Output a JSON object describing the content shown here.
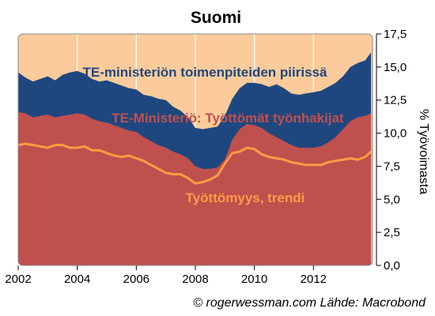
{
  "chart_data": {
    "type": "area",
    "title": "Suomi",
    "ylabel": "% Työvoimasta",
    "ylim": [
      0,
      17.5
    ],
    "xlim": [
      2002,
      2014
    ],
    "yticks": [
      "0,0",
      "2,5",
      "5,0",
      "7,5",
      "10,0",
      "12,5",
      "15,0",
      "17,5"
    ],
    "ytick_values": [
      0,
      2.5,
      5,
      7.5,
      10,
      12.5,
      15,
      17.5
    ],
    "xticks": [
      "2002",
      "2004",
      "2006",
      "2008",
      "2010",
      "2012"
    ],
    "xtick_values": [
      2002,
      2004,
      2006,
      2008,
      2010,
      2012
    ],
    "x": [
      2002.0,
      2002.25,
      2002.5,
      2002.75,
      2003.0,
      2003.25,
      2003.5,
      2003.75,
      2004.0,
      2004.25,
      2004.5,
      2004.75,
      2005.0,
      2005.25,
      2005.5,
      2005.75,
      2006.0,
      2006.25,
      2006.5,
      2006.75,
      2007.0,
      2007.25,
      2007.5,
      2007.75,
      2008.0,
      2008.25,
      2008.5,
      2008.75,
      2009.0,
      2009.25,
      2009.5,
      2009.75,
      2010.0,
      2010.25,
      2010.5,
      2010.75,
      2011.0,
      2011.25,
      2011.5,
      2011.75,
      2012.0,
      2012.25,
      2012.5,
      2012.75,
      2013.0,
      2013.25,
      2013.5,
      2013.75,
      2013.95
    ],
    "series": [
      {
        "name": "TE-ministeriön toimenpiteiden piirissä",
        "color": "#1f477f",
        "values": [
          14.6,
          14.2,
          13.9,
          14.1,
          14.3,
          14.0,
          14.4,
          14.6,
          14.7,
          14.5,
          14.1,
          13.9,
          14.0,
          13.8,
          13.6,
          13.4,
          13.3,
          12.9,
          12.8,
          12.6,
          12.5,
          12.0,
          11.7,
          11.2,
          10.4,
          10.3,
          10.4,
          10.5,
          11.3,
          12.6,
          13.4,
          13.8,
          13.8,
          13.7,
          13.5,
          13.7,
          13.4,
          13.0,
          12.9,
          13.0,
          13.1,
          13.2,
          13.5,
          13.8,
          14.3,
          15.0,
          15.3,
          15.5,
          16.1
        ]
      },
      {
        "name": "TE-Ministeriö: Työttömät työnhakijat",
        "color": "#c0504d",
        "values": [
          11.6,
          11.5,
          11.2,
          11.3,
          11.4,
          11.2,
          11.3,
          11.4,
          11.5,
          11.4,
          11.1,
          10.9,
          10.8,
          10.6,
          10.4,
          10.2,
          10.1,
          9.7,
          9.4,
          9.1,
          8.9,
          8.6,
          8.4,
          8.1,
          7.5,
          7.3,
          7.3,
          7.4,
          8.0,
          9.5,
          10.3,
          10.7,
          10.6,
          10.4,
          10.0,
          9.7,
          9.4,
          9.1,
          8.9,
          8.9,
          8.9,
          9.0,
          9.3,
          9.7,
          10.3,
          10.9,
          11.2,
          11.3,
          11.5
        ]
      },
      {
        "name": "Työttömyys, trendi",
        "color": "#ff9a44",
        "values": [
          9.1,
          9.2,
          9.1,
          9.0,
          8.9,
          9.1,
          9.1,
          8.9,
          8.9,
          9.0,
          8.7,
          8.7,
          8.5,
          8.3,
          8.2,
          8.3,
          8.1,
          7.9,
          7.6,
          7.3,
          7.0,
          6.9,
          6.9,
          6.6,
          6.2,
          6.3,
          6.5,
          6.8,
          7.7,
          8.5,
          8.6,
          8.9,
          8.8,
          8.4,
          8.2,
          8.1,
          8.0,
          7.8,
          7.7,
          7.6,
          7.6,
          7.6,
          7.8,
          7.9,
          8.0,
          8.1,
          8.0,
          8.2,
          8.6
        ]
      }
    ],
    "background_color": "#fbcb9b",
    "annotations": [
      {
        "id": "ann-toimenpiteet",
        "text": "TE-ministeriön toimenpiteiden piirissä",
        "color": "#1f477f"
      },
      {
        "id": "ann-tyottomat",
        "text": "TE-Ministeriö: Työttömät työnhakijat",
        "color": "#c0504d"
      },
      {
        "id": "ann-trendi",
        "text": "Työttömyys, trendi",
        "color": "#ff9a44"
      }
    ],
    "credit": "© rogerwessman.com Lähde: Macrobond",
    "grid": "vertical-only",
    "legend": "none"
  }
}
